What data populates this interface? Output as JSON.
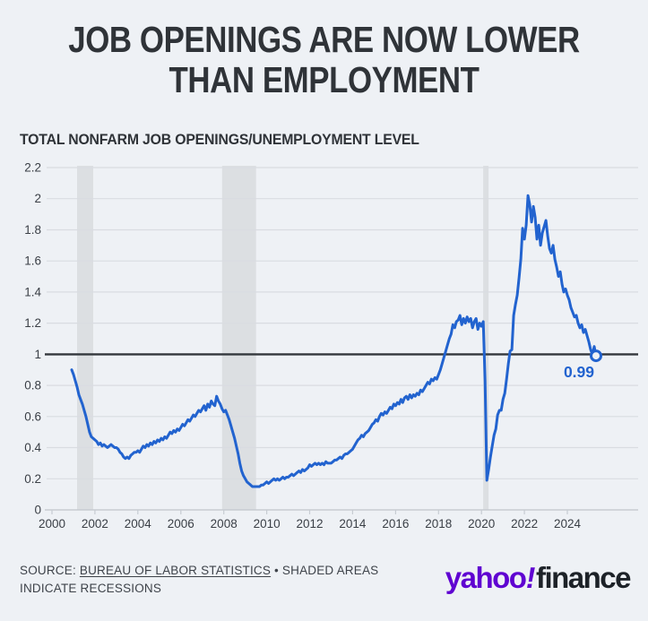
{
  "title": {
    "line1": "JOB OPENINGS ARE NOW LOWER",
    "line2": "THAN EMPLOYMENT"
  },
  "subtitle": "TOTAL NONFARM JOB OPENINGS/UNEMPLOYMENT LEVEL",
  "footer": {
    "source_prefix": "SOURCE: ",
    "source_link": "BUREAU OF LABOR STATISTICS",
    "source_suffix": " • SHADED AREAS INDICATE RECESSIONS",
    "logo_yahoo": "yahoo",
    "logo_bang": "!",
    "logo_finance": "finance"
  },
  "chart_data": {
    "type": "line",
    "title": "TOTAL NONFARM JOB OPENINGS/UNEMPLOYMENT LEVEL",
    "xlabel": "",
    "ylabel": "",
    "x_start": 2000.9167,
    "x_step": 0.0833,
    "xlim": [
      2000,
      2025.6
    ],
    "ylim": [
      0,
      2.2
    ],
    "grid": true,
    "x_ticks": [
      2000,
      2002,
      2004,
      2006,
      2008,
      2010,
      2012,
      2014,
      2016,
      2018,
      2020,
      2022,
      2024
    ],
    "y_ticks": [
      0,
      0.2,
      0.4,
      0.6,
      0.8,
      1,
      1.2,
      1.4,
      1.6,
      1.8,
      2,
      2.2
    ],
    "y_tick_labels": [
      "0",
      "0.2",
      "0.4",
      "0.6",
      "0.8",
      "1",
      "1.2",
      "1.4",
      "1.6",
      "1.8",
      "2",
      "2.2"
    ],
    "reference_line": {
      "y": 1,
      "color": "#33373c"
    },
    "recessions": [
      [
        2001.17,
        2001.92
      ],
      [
        2007.92,
        2009.5
      ],
      [
        2020.08,
        2020.33
      ]
    ],
    "recessions_note": "SHADED AREAS INDICATE RECESSIONS",
    "end_label": "0.99",
    "last_value": 0.99,
    "line_color": "#2263cf",
    "recession_color": "#dcdfe2",
    "grid_color": "#d9dce1",
    "axis_color": "#c7ccd2",
    "tick_text_color": "#3a3f46",
    "background_color": "#eef1f5",
    "values": [
      0.9,
      0.87,
      0.83,
      0.79,
      0.74,
      0.71,
      0.68,
      0.64,
      0.6,
      0.55,
      0.5,
      0.47,
      0.46,
      0.45,
      0.44,
      0.42,
      0.43,
      0.41,
      0.42,
      0.41,
      0.4,
      0.41,
      0.42,
      0.41,
      0.4,
      0.4,
      0.39,
      0.37,
      0.36,
      0.34,
      0.33,
      0.34,
      0.33,
      0.35,
      0.36,
      0.37,
      0.37,
      0.38,
      0.37,
      0.39,
      0.41,
      0.4,
      0.42,
      0.41,
      0.43,
      0.42,
      0.44,
      0.43,
      0.45,
      0.44,
      0.46,
      0.45,
      0.47,
      0.46,
      0.48,
      0.5,
      0.49,
      0.51,
      0.5,
      0.52,
      0.51,
      0.53,
      0.55,
      0.54,
      0.56,
      0.58,
      0.57,
      0.59,
      0.61,
      0.6,
      0.62,
      0.64,
      0.63,
      0.65,
      0.67,
      0.64,
      0.68,
      0.66,
      0.7,
      0.68,
      0.67,
      0.73,
      0.7,
      0.68,
      0.65,
      0.63,
      0.64,
      0.61,
      0.58,
      0.54,
      0.5,
      0.46,
      0.41,
      0.36,
      0.3,
      0.25,
      0.22,
      0.2,
      0.18,
      0.17,
      0.16,
      0.15,
      0.15,
      0.15,
      0.15,
      0.15,
      0.16,
      0.16,
      0.17,
      0.18,
      0.17,
      0.18,
      0.19,
      0.2,
      0.19,
      0.2,
      0.19,
      0.2,
      0.21,
      0.2,
      0.21,
      0.21,
      0.22,
      0.23,
      0.22,
      0.23,
      0.24,
      0.25,
      0.24,
      0.26,
      0.25,
      0.26,
      0.27,
      0.29,
      0.28,
      0.29,
      0.3,
      0.29,
      0.3,
      0.29,
      0.3,
      0.29,
      0.31,
      0.3,
      0.3,
      0.3,
      0.31,
      0.32,
      0.32,
      0.33,
      0.34,
      0.33,
      0.35,
      0.36,
      0.36,
      0.37,
      0.38,
      0.39,
      0.41,
      0.43,
      0.45,
      0.46,
      0.48,
      0.47,
      0.49,
      0.5,
      0.51,
      0.53,
      0.55,
      0.56,
      0.58,
      0.57,
      0.6,
      0.62,
      0.61,
      0.63,
      0.62,
      0.64,
      0.66,
      0.65,
      0.68,
      0.67,
      0.69,
      0.68,
      0.71,
      0.69,
      0.72,
      0.73,
      0.71,
      0.74,
      0.72,
      0.74,
      0.73,
      0.75,
      0.74,
      0.77,
      0.76,
      0.78,
      0.8,
      0.82,
      0.81,
      0.84,
      0.83,
      0.85,
      0.84,
      0.87,
      0.9,
      0.94,
      0.98,
      1.02,
      1.06,
      1.1,
      1.13,
      1.19,
      1.17,
      1.21,
      1.22,
      1.25,
      1.19,
      1.23,
      1.2,
      1.24,
      1.21,
      1.23,
      1.17,
      1.21,
      1.23,
      1.16,
      1.2,
      1.18,
      1.21,
      0.83,
      0.19,
      0.26,
      0.34,
      0.41,
      0.48,
      0.52,
      0.61,
      0.64,
      0.64,
      0.71,
      0.75,
      0.84,
      0.94,
      1.02,
      1.03,
      1.25,
      1.32,
      1.38,
      1.49,
      1.61,
      1.81,
      1.74,
      1.83,
      2.02,
      1.96,
      1.85,
      1.95,
      1.88,
      1.74,
      1.83,
      1.7,
      1.78,
      1.82,
      1.86,
      1.76,
      1.68,
      1.65,
      1.7,
      1.61,
      1.56,
      1.5,
      1.53,
      1.45,
      1.4,
      1.42,
      1.38,
      1.35,
      1.3,
      1.27,
      1.24,
      1.25,
      1.2,
      1.17,
      1.19,
      1.14,
      1.16,
      1.12,
      1.08,
      1.03,
      1.0,
      1.05,
      0.99
    ]
  }
}
